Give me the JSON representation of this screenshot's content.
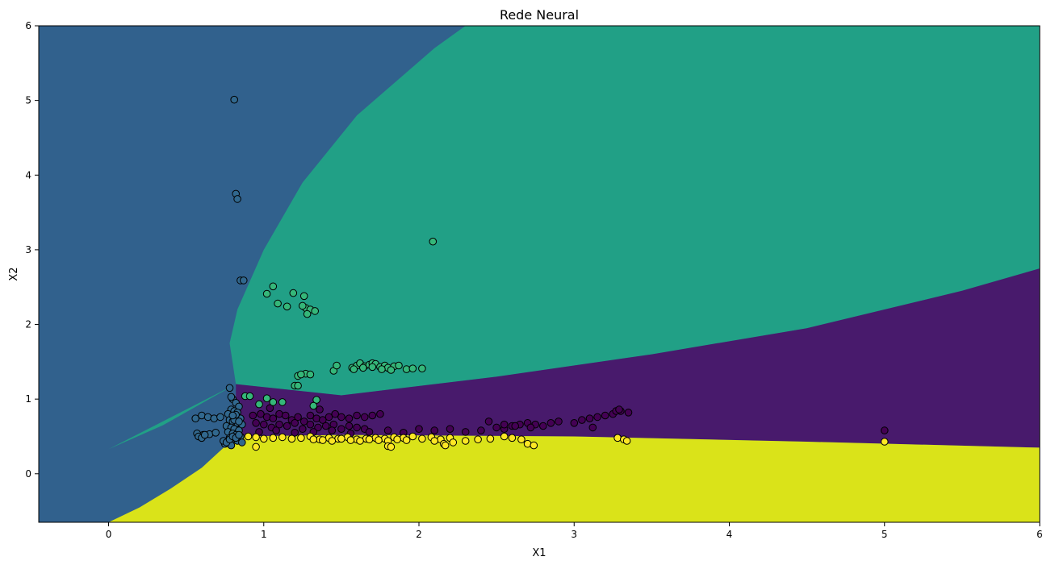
{
  "chart_data": {
    "type": "scatter",
    "title": "Rede Neural",
    "xlabel": "X1",
    "ylabel": "X2",
    "xlim": [
      -0.45,
      6.0
    ],
    "ylim": [
      -0.65,
      6.0
    ],
    "xticks": [
      0,
      1,
      2,
      3,
      4,
      5,
      6
    ],
    "yticks": [
      0,
      1,
      2,
      3,
      4,
      5,
      6
    ],
    "grid": false,
    "legend": "none",
    "background": "decision regions",
    "region_colors": {
      "class_0": "#481a6c",
      "class_1": "#31618d",
      "class_2": "#21a086",
      "class_3": "#dae319"
    },
    "point_colors": {
      "class_0": "#440154",
      "class_1": "#31688e",
      "class_2": "#35b779",
      "class_3": "#fde725"
    },
    "point_edge_color": "#000000",
    "region_boundaries": {
      "class_1_class_2": [
        [
          0.0,
          0.33
        ],
        [
          0.35,
          0.65
        ],
        [
          0.82,
          1.2
        ],
        [
          0.78,
          1.75
        ],
        [
          0.83,
          2.2
        ],
        [
          1.0,
          3.0
        ],
        [
          1.25,
          3.9
        ],
        [
          1.6,
          4.8
        ],
        [
          2.1,
          5.7
        ],
        [
          2.3,
          6.0
        ]
      ],
      "class_2_class_0": [
        [
          0.82,
          1.2
        ],
        [
          1.5,
          1.05
        ],
        [
          2.5,
          1.3
        ],
        [
          3.5,
          1.6
        ],
        [
          4.5,
          1.95
        ],
        [
          5.5,
          2.45
        ],
        [
          6.0,
          2.75
        ]
      ],
      "class_0_class_3": [
        [
          0.82,
          0.5
        ],
        [
          1.5,
          0.52
        ],
        [
          3.0,
          0.5
        ],
        [
          4.5,
          0.43
        ],
        [
          6.0,
          0.35
        ]
      ],
      "class_1_class_3": [
        [
          0.0,
          -0.65
        ],
        [
          0.2,
          -0.45
        ],
        [
          0.4,
          -0.2
        ],
        [
          0.6,
          0.08
        ],
        [
          0.82,
          0.5
        ]
      ],
      "class_1_class_0": [
        [
          0.82,
          0.5
        ],
        [
          0.82,
          1.2
        ]
      ]
    },
    "series": [
      {
        "class": "class_0",
        "x": [
          0.93,
          0.98,
          1.02,
          1.06,
          1.1,
          1.14,
          1.18,
          1.22,
          1.26,
          1.3,
          1.34,
          1.38,
          1.42,
          1.46,
          1.5,
          1.55,
          1.6,
          1.65,
          1.7,
          1.75,
          0.95,
          1.0,
          1.05,
          1.1,
          1.15,
          1.2,
          1.25,
          1.3,
          1.35,
          1.4,
          1.45,
          1.5,
          1.55,
          1.6,
          1.65,
          0.97,
          1.08,
          1.2,
          1.32,
          1.44,
          1.56,
          1.68,
          1.8,
          1.9,
          2.0,
          2.1,
          2.2,
          2.3,
          2.4,
          2.5,
          2.55,
          2.6,
          2.65,
          2.7,
          2.75,
          2.8,
          2.9,
          3.0,
          3.05,
          3.1,
          3.15,
          3.2,
          3.25,
          3.3,
          3.35,
          2.45,
          2.55,
          2.62,
          2.72,
          2.85,
          3.12,
          3.27,
          3.29,
          5.0,
          1.04,
          1.36
        ],
        "y": [
          0.78,
          0.8,
          0.76,
          0.74,
          0.8,
          0.78,
          0.72,
          0.76,
          0.7,
          0.78,
          0.74,
          0.72,
          0.76,
          0.8,
          0.76,
          0.74,
          0.78,
          0.76,
          0.78,
          0.8,
          0.68,
          0.66,
          0.62,
          0.66,
          0.64,
          0.68,
          0.6,
          0.66,
          0.62,
          0.64,
          0.66,
          0.6,
          0.64,
          0.62,
          0.6,
          0.56,
          0.58,
          0.55,
          0.56,
          0.58,
          0.54,
          0.56,
          0.58,
          0.55,
          0.6,
          0.58,
          0.6,
          0.56,
          0.58,
          0.62,
          0.6,
          0.64,
          0.66,
          0.68,
          0.66,
          0.64,
          0.7,
          0.68,
          0.72,
          0.74,
          0.76,
          0.78,
          0.8,
          0.84,
          0.82,
          0.7,
          0.66,
          0.64,
          0.62,
          0.68,
          0.62,
          0.84,
          0.86,
          0.58,
          0.88,
          0.86
        ]
      },
      {
        "class": "class_1",
        "x": [
          0.81,
          0.82,
          0.83,
          0.85,
          0.87,
          0.78,
          0.8,
          0.82,
          0.84,
          0.79,
          0.81,
          0.83,
          0.77,
          0.8,
          0.82,
          0.85,
          0.78,
          0.8,
          0.83,
          0.86,
          0.76,
          0.79,
          0.81,
          0.84,
          0.77,
          0.8,
          0.82,
          0.85,
          0.78,
          0.81,
          0.83,
          0.86,
          0.75,
          0.79,
          0.81,
          0.84,
          0.79,
          0.82,
          0.8,
          0.56,
          0.6,
          0.64,
          0.68,
          0.72,
          0.57,
          0.61,
          0.65,
          0.69,
          0.58,
          0.6,
          0.62,
          0.74,
          0.76,
          0.78,
          0.8,
          0.82,
          0.84
        ],
        "y": [
          5.01,
          3.75,
          3.68,
          2.59,
          2.59,
          1.15,
          1.0,
          0.95,
          0.9,
          0.86,
          0.84,
          0.82,
          0.8,
          0.78,
          0.76,
          0.74,
          0.72,
          0.7,
          0.68,
          0.66,
          0.64,
          0.62,
          0.6,
          0.58,
          0.56,
          0.54,
          0.52,
          0.5,
          0.48,
          0.46,
          0.44,
          0.42,
          0.4,
          0.38,
          0.72,
          0.7,
          1.03,
          0.79,
          0.78,
          0.74,
          0.78,
          0.76,
          0.74,
          0.76,
          0.54,
          0.52,
          0.53,
          0.55,
          0.5,
          0.48,
          0.52,
          0.44,
          0.42,
          0.46,
          0.5,
          0.48,
          0.52
        ]
      },
      {
        "class": "class_2",
        "x": [
          2.09,
          1.06,
          1.02,
          1.09,
          1.15,
          1.19,
          1.26,
          1.27,
          1.25,
          1.3,
          1.33,
          1.28,
          1.22,
          1.27,
          1.3,
          1.24,
          1.45,
          1.47,
          1.57,
          1.6,
          1.62,
          1.65,
          1.68,
          1.7,
          1.72,
          1.75,
          1.78,
          1.8,
          1.84,
          1.87,
          1.92,
          1.96,
          2.02,
          1.58,
          1.64,
          1.7,
          1.76,
          1.82,
          1.2,
          1.22,
          0.88,
          0.91,
          0.97,
          1.02,
          1.06,
          1.12,
          1.34,
          1.32
        ],
        "y": [
          3.11,
          2.51,
          2.41,
          2.28,
          2.24,
          2.42,
          2.38,
          2.22,
          2.25,
          2.2,
          2.18,
          2.14,
          1.31,
          1.34,
          1.33,
          1.33,
          1.38,
          1.45,
          1.42,
          1.45,
          1.48,
          1.44,
          1.46,
          1.48,
          1.47,
          1.43,
          1.45,
          1.42,
          1.44,
          1.45,
          1.4,
          1.41,
          1.41,
          1.4,
          1.42,
          1.43,
          1.4,
          1.39,
          1.18,
          1.18,
          1.04,
          1.04,
          0.93,
          1.01,
          0.96,
          0.96,
          0.99,
          0.91
        ]
      },
      {
        "class": "class_3",
        "x": [
          0.9,
          0.95,
          1.0,
          1.06,
          1.12,
          1.18,
          1.24,
          1.3,
          1.36,
          1.42,
          1.48,
          1.54,
          1.6,
          1.66,
          1.72,
          1.78,
          1.84,
          1.9,
          1.96,
          2.02,
          2.08,
          2.14,
          2.2,
          1.32,
          1.38,
          1.44,
          1.5,
          1.56,
          1.62,
          1.68,
          1.74,
          1.8,
          1.86,
          1.92,
          2.1,
          2.16,
          2.22,
          2.3,
          2.38,
          2.46,
          2.55,
          2.6,
          2.66,
          2.7,
          2.74,
          3.28,
          3.32,
          3.34,
          5.0,
          0.95,
          1.8,
          1.82,
          2.17
        ],
        "y": [
          0.5,
          0.49,
          0.47,
          0.48,
          0.49,
          0.47,
          0.48,
          0.5,
          0.46,
          0.48,
          0.47,
          0.49,
          0.46,
          0.47,
          0.48,
          0.47,
          0.49,
          0.48,
          0.5,
          0.47,
          0.49,
          0.46,
          0.48,
          0.46,
          0.45,
          0.44,
          0.47,
          0.45,
          0.44,
          0.46,
          0.45,
          0.44,
          0.46,
          0.45,
          0.44,
          0.4,
          0.42,
          0.44,
          0.46,
          0.47,
          0.5,
          0.48,
          0.46,
          0.4,
          0.38,
          0.48,
          0.46,
          0.44,
          0.43,
          0.36,
          0.37,
          0.36,
          0.38
        ]
      }
    ]
  }
}
